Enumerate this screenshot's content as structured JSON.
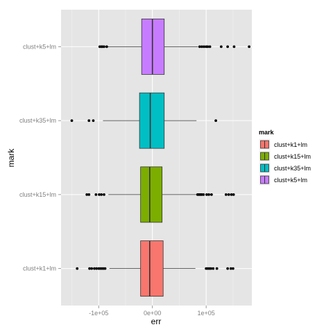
{
  "chart_data": {
    "type": "boxplot",
    "orientation": "horizontal",
    "xlabel": "err",
    "ylabel": "mark",
    "xlim": [
      -170000,
      185000
    ],
    "xticks": [
      {
        "value": -100000,
        "label": "-1e+05"
      },
      {
        "value": 0,
        "label": "0e+00"
      },
      {
        "value": 100000,
        "label": "1e+05"
      }
    ],
    "grid": true,
    "legend": {
      "title": "mark",
      "placement": "right",
      "entries": [
        "clust+k1+lm",
        "clust+k15+lm",
        "clust+k35+lm",
        "clust+k5+lm"
      ]
    },
    "series": [
      {
        "name": "clust+k1+lm",
        "color": "#F8766D",
        "whisker_low": -80000,
        "q1": -22000,
        "median": -5000,
        "q3": 20000,
        "whisker_high": 80000,
        "outliers": [
          -140000,
          -117000,
          -113000,
          -108000,
          -104000,
          -100000,
          -97000,
          -94000,
          -91000,
          -88000,
          100000,
          103000,
          106000,
          109000,
          113000,
          120000,
          140000,
          146000,
          150000
        ]
      },
      {
        "name": "clust+k15+lm",
        "color": "#7CAE00",
        "whisker_low": -82000,
        "q1": -22000,
        "median": -5000,
        "q3": 18000,
        "whisker_high": 82000,
        "outliers": [
          -122000,
          -118000,
          -105000,
          -99000,
          -95000,
          -90000,
          84000,
          86000,
          88000,
          90000,
          92000,
          95000,
          101000,
          105000,
          110000,
          137000,
          142000,
          147000,
          151000
        ]
      },
      {
        "name": "clust+k35+lm",
        "color": "#00BFC4",
        "whisker_low": -92000,
        "q1": -24000,
        "median": -4000,
        "q3": 22000,
        "whisker_high": 82000,
        "outliers": [
          -150000,
          -118000,
          -110000,
          118000
        ]
      },
      {
        "name": "clust+k5+lm",
        "color": "#C77CFF",
        "whisker_low": -85000,
        "q1": -20000,
        "median": 0,
        "q3": 22000,
        "whisker_high": 85000,
        "outliers": [
          -98000,
          -95000,
          -93000,
          -90000,
          -85000,
          88000,
          92000,
          96000,
          100000,
          103000,
          107000,
          128000,
          140000,
          152000,
          180000
        ]
      }
    ]
  }
}
